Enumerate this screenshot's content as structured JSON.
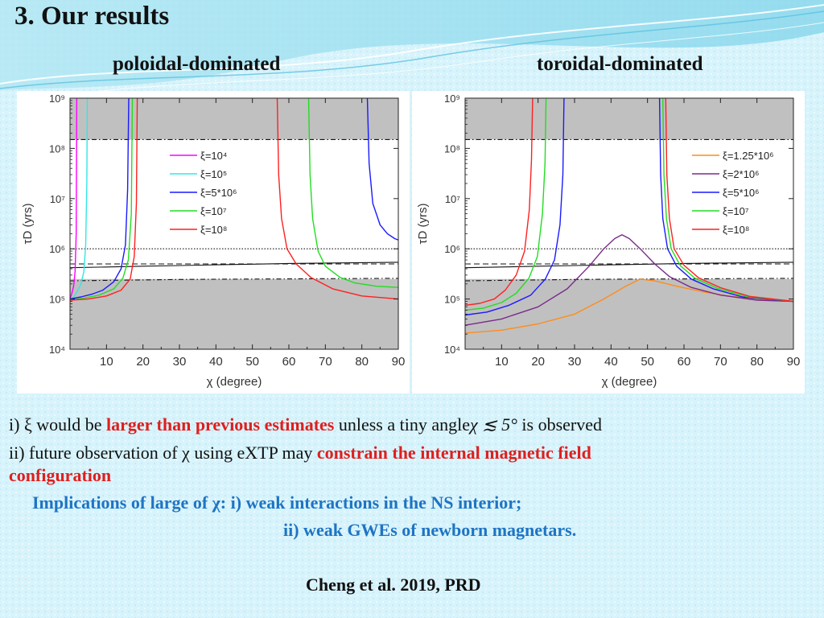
{
  "slide": {
    "title": "3. Our results",
    "subtitle_left": "poloidal-dominated",
    "subtitle_right": "toroidal-dominated"
  },
  "text": {
    "line1_a": "i) ξ would be ",
    "line1_red": "larger than previous estimates",
    "line1_b": " unless a tiny angle",
    "line1_math": "χ ≲ 5°",
    "line1_c": " is observed",
    "line2_a": "ii) future observation of χ using eXTP may ",
    "line2_red": "constrain the internal magnetic field",
    "line3_red": "configuration",
    "line4": "Implications of large of χ: i) weak interactions in the NS interior;",
    "line5": "ii) weak GWEs of newborn magnetars.",
    "citation": "Cheng et al. 2019, PRD"
  },
  "colors": {
    "magenta": "#ff00ff",
    "cyan": "#33e6e6",
    "blue": "#1a1aff",
    "green": "#22dd22",
    "red": "#ff2020",
    "orange": "#ff8c1a",
    "purple": "#7a2a8a",
    "highlight_red": "#e01e1e",
    "highlight_blue": "#1e74c4",
    "shade": "#c0c0c0"
  },
  "chart_data": [
    {
      "type": "line",
      "title": "",
      "xlabel": "χ (degree)",
      "ylabel": "τD (yrs)",
      "xlim": [
        0,
        90
      ],
      "ylim": [
        10000,
        1000000000
      ],
      "y_scale": "log",
      "xticks": [
        "10",
        "20",
        "30",
        "40",
        "50",
        "60",
        "70",
        "80",
        "90"
      ],
      "yticks": [
        "10⁴",
        "10⁵",
        "10⁶",
        "10⁷",
        "10⁸",
        "10⁹"
      ],
      "legend_position": "upper-center",
      "shaded_regions": [
        [
          150000000,
          1000000000
        ],
        [
          10000,
          250000
        ]
      ],
      "reference_lines": [
        {
          "style": "dash-dot",
          "values": {
            "x": [
              0,
              90
            ],
            "y": [
              150000000,
              150000000
            ]
          }
        },
        {
          "style": "dotted",
          "values": {
            "x": [
              0,
              90
            ],
            "y": [
              1000000,
              1000000
            ]
          }
        },
        {
          "style": "dashed",
          "values": {
            "x": [
              0,
              90
            ],
            "y": [
              500000,
              500000
            ]
          }
        },
        {
          "style": "solid",
          "values": {
            "x": [
              0,
              10,
              20,
              30,
              40,
              50,
              60,
              70,
              80,
              90
            ],
            "y": [
              420000,
              435000,
              450000,
              465000,
              480000,
              495000,
              510000,
              520000,
              530000,
              540000
            ]
          }
        },
        {
          "style": "dash-dot",
          "values": {
            "x": [
              0,
              10,
              20,
              30,
              40,
              50,
              60,
              70,
              80,
              90
            ],
            "y": [
              230000,
              235000,
              240000,
              245000,
              248000,
              250000,
              252000,
              254000,
              256000,
              258000
            ]
          }
        }
      ],
      "series": [
        {
          "name": "ξ=10⁴",
          "color_key": "magenta",
          "segments": [
            {
              "x": [
                0,
                0.5,
                1,
                1.4,
                1.7,
                1.85
              ],
              "y": [
                100000,
                130000,
                180000,
                350000,
                2000000,
                1000000000
              ]
            }
          ]
        },
        {
          "name": "ξ=10⁵",
          "color_key": "cyan",
          "segments": [
            {
              "x": [
                0,
                1,
                2,
                3,
                3.8,
                4.3,
                4.6,
                4.75
              ],
              "y": [
                100000,
                110000,
                140000,
                200000,
                350000,
                1200000,
                20000000,
                1000000000
              ]
            }
          ]
        },
        {
          "name": "ξ=5*10⁶",
          "color_key": "blue",
          "segments": [
            {
              "x": [
                0,
                3,
                6,
                9,
                12,
                14,
                15.2,
                15.8,
                16.1
              ],
              "y": [
                100000,
                110000,
                125000,
                150000,
                220000,
                400000,
                1200000,
                15000000,
                1000000000
              ]
            },
            {
              "x": [
                81.5,
                82,
                83,
                85,
                87,
                89,
                90
              ],
              "y": [
                1000000000,
                50000000,
                8000000,
                3000000,
                2000000,
                1600000,
                1500000
              ]
            }
          ]
        },
        {
          "name": "ξ=10⁷",
          "color_key": "green",
          "segments": [
            {
              "x": [
                0,
                4,
                8,
                12,
                14.5,
                16,
                16.8,
                17.1
              ],
              "y": [
                95000,
                105000,
                120000,
                160000,
                260000,
                600000,
                5000000,
                1000000000
              ]
            },
            {
              "x": [
                65.4,
                65.8,
                66.5,
                68,
                70,
                74,
                78,
                84,
                90
              ],
              "y": [
                1000000000,
                30000000,
                4000000,
                900000,
                450000,
                270000,
                210000,
                180000,
                170000
              ]
            }
          ]
        },
        {
          "name": "ξ=10⁸",
          "color_key": "red",
          "segments": [
            {
              "x": [
                0,
                5,
                10,
                14,
                16.5,
                17.6,
                18.2,
                18.45
              ],
              "y": [
                95000,
                100000,
                115000,
                150000,
                250000,
                700000,
                8000000,
                1000000000
              ]
            },
            {
              "x": [
                56.8,
                57.2,
                58,
                59.5,
                62,
                66,
                72,
                80,
                90
              ],
              "y": [
                1000000000,
                30000000,
                4000000,
                1000000,
                500000,
                270000,
                160000,
                115000,
                100000
              ]
            }
          ]
        }
      ]
    },
    {
      "type": "line",
      "title": "",
      "xlabel": "χ (degree)",
      "ylabel": "τD (yrs)",
      "xlim": [
        0,
        90
      ],
      "ylim": [
        10000,
        1000000000
      ],
      "y_scale": "log",
      "xticks": [
        "10",
        "20",
        "30",
        "40",
        "50",
        "60",
        "70",
        "80",
        "90"
      ],
      "yticks": [
        "10⁴",
        "10⁵",
        "10⁶",
        "10⁷",
        "10⁸",
        "10⁹"
      ],
      "legend_position": "upper-right",
      "shaded_regions": [
        [
          150000000,
          1000000000
        ],
        [
          10000,
          250000
        ]
      ],
      "reference_lines": [
        {
          "style": "dash-dot",
          "values": {
            "x": [
              0,
              90
            ],
            "y": [
              150000000,
              150000000
            ]
          }
        },
        {
          "style": "dotted",
          "values": {
            "x": [
              0,
              90
            ],
            "y": [
              1000000,
              1000000
            ]
          }
        },
        {
          "style": "dashed",
          "values": {
            "x": [
              0,
              90
            ],
            "y": [
              500000,
              500000
            ]
          }
        },
        {
          "style": "solid",
          "values": {
            "x": [
              0,
              10,
              20,
              30,
              40,
              50,
              60,
              70,
              80,
              90
            ],
            "y": [
              420000,
              435000,
              450000,
              465000,
              480000,
              495000,
              510000,
              520000,
              530000,
              540000
            ]
          }
        },
        {
          "style": "dash-dot",
          "values": {
            "x": [
              0,
              10,
              20,
              30,
              40,
              50,
              60,
              70,
              80,
              90
            ],
            "y": [
              230000,
              235000,
              240000,
              245000,
              248000,
              250000,
              252000,
              254000,
              256000,
              258000
            ]
          }
        }
      ],
      "series": [
        {
          "name": "ξ=1.25*10⁶",
          "color_key": "orange",
          "segments": [
            {
              "x": [
                0,
                10,
                20,
                30,
                38,
                44,
                48,
                52,
                58,
                65,
                72,
                80,
                90
              ],
              "y": [
                21000,
                24000,
                32000,
                50000,
                100000,
                180000,
                250000,
                230000,
                180000,
                140000,
                115000,
                100000,
                90000
              ]
            }
          ]
        },
        {
          "name": "ξ=2*10⁶",
          "color_key": "purple",
          "segments": [
            {
              "x": [
                0,
                10,
                20,
                28,
                34,
                38,
                41,
                43,
                45,
                48,
                52,
                56,
                62,
                70,
                80,
                90
              ],
              "y": [
                30000,
                40000,
                70000,
                160000,
                450000,
                1000000,
                1600000,
                1900000,
                1600000,
                1000000,
                500000,
                280000,
                170000,
                120000,
                95000,
                90000
              ]
            }
          ]
        },
        {
          "name": "ξ=5*10⁶",
          "color_key": "blue",
          "segments": [
            {
              "x": [
                0,
                6,
                12,
                18,
                22,
                24.5,
                26,
                26.8,
                27.1
              ],
              "y": [
                48000,
                55000,
                75000,
                120000,
                250000,
                600000,
                3000000,
                30000000,
                1000000000
              ]
            },
            {
              "x": [
                53.3,
                53.6,
                54.2,
                55.5,
                58,
                62,
                68,
                76,
                90
              ],
              "y": [
                1000000000,
                30000000,
                4000000,
                1000000,
                450000,
                250000,
                160000,
                110000,
                90000
              ]
            }
          ]
        },
        {
          "name": "ξ=10⁷",
          "color_key": "green",
          "segments": [
            {
              "x": [
                0,
                5,
                10,
                14,
                17.5,
                19.8,
                21.2,
                21.9,
                22.2
              ],
              "y": [
                60000,
                66000,
                85000,
                130000,
                260000,
                700000,
                5000000,
                50000000,
                1000000000
              ]
            },
            {
              "x": [
                54.2,
                54.5,
                55.2,
                56.5,
                59,
                63,
                69,
                77,
                90
              ],
              "y": [
                1000000000,
                30000000,
                4000000,
                1000000,
                460000,
                260000,
                165000,
                112000,
                90000
              ]
            }
          ]
        },
        {
          "name": "ξ=10⁸",
          "color_key": "red",
          "segments": [
            {
              "x": [
                0,
                4,
                8,
                11,
                14,
                16.3,
                17.6,
                18.2,
                18.5
              ],
              "y": [
                75000,
                82000,
                100000,
                150000,
                300000,
                900000,
                6000000,
                60000000,
                1000000000
              ]
            },
            {
              "x": [
                55,
                55.3,
                56,
                57.3,
                60,
                64,
                70,
                78,
                90
              ],
              "y": [
                1000000000,
                30000000,
                4000000,
                1000000,
                470000,
                265000,
                168000,
                113000,
                90000
              ]
            }
          ]
        }
      ]
    }
  ]
}
